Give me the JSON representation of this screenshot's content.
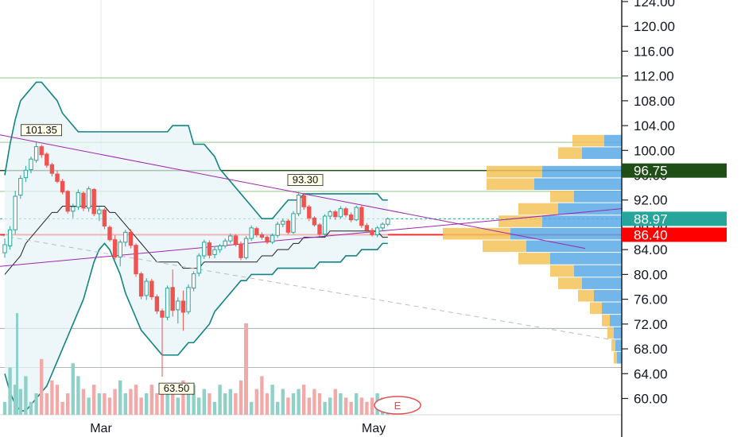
{
  "chart_data": {
    "type": "candlestick",
    "x_axis_labels": [
      "Mar",
      "May"
    ],
    "y_axis": {
      "ticks": [
        "60.00",
        "64.00",
        "68.00",
        "72.00",
        "76.00",
        "80.00",
        "84.00",
        "88.00",
        "92.00",
        "96.00",
        "100.00",
        "104.00",
        "108.00",
        "112.00",
        "116.00",
        "120.00",
        "124.00"
      ],
      "ylim": [
        57.5,
        125.0
      ]
    },
    "price_labels": [
      {
        "value": 96.75,
        "text": "96.75",
        "color": "#1f4e16"
      },
      {
        "value": 88.97,
        "text": "88.97",
        "color": "#26a69a"
      },
      {
        "value": 86.4,
        "text": "86.40",
        "color": "#ff0000"
      }
    ],
    "annotations": [
      {
        "text": "101.35",
        "value": 101.35
      },
      {
        "text": "93.30",
        "value": 93.3
      },
      {
        "text": "63.50",
        "value": 63.5
      }
    ],
    "horizontal_levels": [
      111.7,
      101.3,
      96.75,
      93.4,
      86.4,
      71.3,
      65.0
    ],
    "earnings_marker": "E",
    "candles": [
      [
        83.5,
        85.8,
        82.7,
        84.8
      ],
      [
        84.6,
        87.8,
        84.0,
        87.2
      ],
      [
        87.2,
        93.5,
        86.5,
        92.6
      ],
      [
        92.8,
        96.0,
        92.2,
        95.5
      ],
      [
        95.6,
        97.5,
        94.9,
        96.8
      ],
      [
        96.9,
        99.0,
        96.3,
        98.6
      ],
      [
        98.4,
        101.3,
        98.0,
        100.6
      ],
      [
        100.6,
        100.9,
        98.8,
        99.3
      ],
      [
        99.4,
        99.7,
        97.2,
        97.6
      ],
      [
        97.7,
        98.0,
        95.8,
        96.3
      ],
      [
        96.2,
        96.7,
        94.7,
        95.0
      ],
      [
        95.0,
        95.4,
        92.9,
        93.3
      ],
      [
        93.4,
        93.6,
        89.8,
        90.2
      ],
      [
        90.2,
        91.4,
        89.1,
        90.9
      ],
      [
        90.9,
        93.7,
        90.4,
        93.2
      ],
      [
        93.1,
        93.4,
        90.2,
        90.7
      ],
      [
        90.7,
        94.2,
        90.1,
        93.8
      ],
      [
        93.7,
        93.9,
        89.4,
        89.8
      ],
      [
        89.8,
        90.9,
        88.6,
        90.4
      ],
      [
        90.4,
        90.7,
        87.3,
        87.8
      ],
      [
        87.6,
        87.9,
        85.3,
        85.6
      ],
      [
        85.6,
        86.3,
        82.4,
        82.8
      ],
      [
        82.8,
        85.6,
        81.3,
        85.2
      ],
      [
        85.2,
        87.2,
        84.5,
        86.8
      ],
      [
        86.8,
        87.3,
        84.2,
        84.7
      ],
      [
        84.7,
        85.0,
        79.6,
        80.1
      ],
      [
        80.1,
        80.4,
        76.0,
        76.5
      ],
      [
        76.6,
        79.4,
        75.9,
        78.9
      ],
      [
        78.9,
        79.3,
        75.9,
        76.4
      ],
      [
        76.4,
        76.8,
        73.6,
        74.1
      ],
      [
        74.1,
        74.5,
        63.5,
        73.1
      ],
      [
        73.1,
        78.2,
        72.6,
        77.8
      ],
      [
        77.9,
        80.8,
        73.2,
        74.2
      ],
      [
        74.3,
        76.3,
        72.1,
        75.7
      ],
      [
        75.7,
        77.4,
        70.9,
        73.9
      ],
      [
        74.0,
        78.4,
        73.6,
        77.9
      ],
      [
        77.8,
        80.5,
        77.3,
        80.1
      ],
      [
        80.2,
        83.4,
        79.7,
        83.0
      ],
      [
        83.0,
        85.6,
        82.5,
        85.2
      ],
      [
        85.1,
        85.5,
        82.6,
        83.1
      ],
      [
        83.2,
        84.4,
        82.6,
        84.0
      ],
      [
        84.0,
        84.9,
        83.5,
        84.6
      ],
      [
        84.6,
        85.8,
        84.2,
        85.4
      ],
      [
        85.4,
        86.6,
        85.0,
        86.2
      ],
      [
        86.2,
        86.5,
        84.5,
        84.9
      ],
      [
        84.9,
        85.3,
        82.3,
        82.7
      ],
      [
        82.7,
        86.2,
        82.4,
        85.8
      ],
      [
        85.8,
        87.9,
        85.4,
        87.5
      ],
      [
        87.4,
        87.7,
        86.0,
        86.4
      ],
      [
        86.4,
        86.8,
        85.6,
        86.0
      ],
      [
        86.0,
        86.3,
        84.9,
        85.2
      ],
      [
        85.2,
        86.6,
        84.9,
        86.3
      ],
      [
        86.3,
        88.5,
        85.9,
        88.1
      ],
      [
        88.1,
        89.0,
        87.6,
        88.6
      ],
      [
        88.6,
        88.9,
        86.5,
        86.8
      ],
      [
        86.8,
        90.2,
        86.5,
        89.8
      ],
      [
        89.8,
        93.3,
        89.4,
        92.8
      ],
      [
        92.7,
        93.0,
        90.4,
        90.9
      ],
      [
        90.9,
        91.2,
        88.6,
        89.1
      ],
      [
        89.1,
        89.4,
        87.7,
        88.0
      ],
      [
        88.0,
        88.3,
        86.1,
        86.5
      ],
      [
        86.5,
        89.7,
        86.2,
        89.4
      ],
      [
        89.4,
        90.4,
        88.9,
        90.1
      ],
      [
        90.1,
        90.4,
        88.8,
        89.3
      ],
      [
        89.3,
        91.0,
        89.0,
        90.6
      ],
      [
        90.6,
        90.9,
        89.2,
        89.6
      ],
      [
        89.6,
        90.0,
        88.4,
        88.8
      ],
      [
        88.8,
        91.1,
        88.6,
        90.8
      ],
      [
        90.8,
        91.1,
        87.5,
        87.9
      ],
      [
        87.9,
        88.3,
        86.7,
        87.1
      ],
      [
        87.1,
        87.5,
        86.1,
        86.4
      ],
      [
        86.4,
        87.8,
        86.0,
        87.5
      ],
      [
        87.5,
        88.4,
        87.1,
        88.1
      ],
      [
        88.1,
        89.2,
        87.8,
        88.97
      ]
    ],
    "volume": [
      3,
      11,
      7,
      6,
      9,
      3,
      5,
      13,
      5,
      8,
      7,
      3,
      5,
      12,
      9,
      6,
      4,
      7,
      5,
      5,
      4,
      6,
      8,
      5,
      6,
      7,
      4,
      5,
      7,
      5,
      7,
      5,
      6,
      4,
      8,
      5,
      7,
      4,
      6,
      5,
      3,
      7,
      5,
      6,
      5,
      8,
      4,
      3,
      6,
      9,
      5,
      7,
      3,
      6,
      4,
      5,
      6,
      7,
      4,
      6,
      5,
      3,
      4,
      6,
      5,
      4,
      3,
      5,
      4,
      3,
      4,
      5,
      4,
      3
    ],
    "bollinger": {
      "upper": [
        96,
        101,
        105,
        108,
        109,
        110,
        111,
        111,
        110,
        109,
        108,
        106,
        105,
        104,
        103,
        103,
        103,
        103,
        103,
        103,
        103,
        103,
        103,
        103,
        103,
        103,
        103,
        103,
        103,
        103,
        103,
        103,
        104,
        104,
        104,
        104,
        101,
        101,
        101,
        100,
        99,
        97,
        96,
        95,
        94,
        93,
        92,
        91,
        90,
        89,
        89,
        89,
        90,
        91,
        92,
        92,
        92,
        93,
        93,
        93,
        93,
        93,
        93,
        93,
        93,
        93,
        93,
        93,
        93,
        93,
        93,
        93,
        92,
        92
      ],
      "middle": [
        80,
        81,
        82,
        83,
        85,
        86,
        87,
        88,
        89,
        90,
        90,
        91,
        91,
        91,
        91,
        91,
        91,
        91,
        91,
        91,
        90,
        90,
        89,
        88,
        87,
        86,
        85,
        84,
        83,
        82,
        82,
        82,
        82,
        82,
        81,
        81,
        81,
        81,
        82,
        82,
        82,
        82,
        82,
        82,
        82,
        82,
        82,
        82,
        82,
        83,
        83,
        83,
        84,
        84,
        84,
        85,
        85,
        86,
        86,
        86,
        86,
        86,
        87,
        87,
        87,
        87,
        87,
        87,
        87,
        87,
        87,
        87,
        86,
        86
      ],
      "lower": [
        64,
        61,
        59,
        58,
        58,
        59,
        60,
        61,
        62,
        64,
        66,
        68,
        70,
        72,
        74,
        76,
        79,
        82,
        84,
        85,
        84,
        82,
        80,
        77,
        75,
        73,
        71,
        70,
        69,
        68,
        67,
        67,
        67,
        67,
        68,
        69,
        69,
        70,
        71,
        72,
        74,
        75,
        76,
        77,
        78,
        79,
        79,
        80,
        80,
        80,
        80,
        80,
        81,
        81,
        81,
        81,
        81,
        81,
        81,
        81,
        82,
        82,
        82,
        82,
        82,
        83,
        83,
        83,
        84,
        84,
        84,
        84,
        85,
        85
      ]
    }
  }
}
